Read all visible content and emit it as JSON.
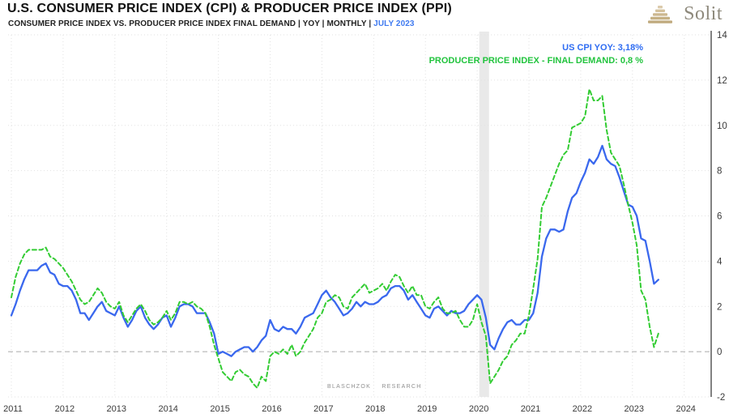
{
  "header": {
    "title": "U.S. CONSUMER PRICE INDEX (CPI) & PRODUCER PRICE INDEX (PPI)",
    "subtitle_prefix": "CONSUMER PRICE INDEX VS. PRODUCER PRICE INDEX FINAL DEMAND | YOY | MONTHLY | ",
    "subtitle_period": "JULY 2023",
    "logo_text": "Solit"
  },
  "legend": {
    "cpi_label": "US CPI YOY: 3,18%",
    "ppi_label": "PRODUCER PRICE INDEX - FINAL DEMAND: 0,8 %"
  },
  "watermark": "BLASCHZOK RESEARCH",
  "colors": {
    "cpi_line": "#3a68ee",
    "ppi_line": "#33cc33",
    "legend_cpi": "#2e6cf2",
    "legend_ppi": "#22c43e",
    "subtitle_period": "#3f7af0",
    "logo_text": "#8e897c",
    "logo_gold_dark": "#c0aa7e",
    "logo_gold_light": "#dbcaab",
    "grid": "#e2e2e2",
    "zero_line": "#ababab",
    "axis_line": "#2f2f2f",
    "recession_band": "#e9e9e9"
  },
  "chart_data": {
    "type": "line",
    "title": "U.S. CONSUMER PRICE INDEX (CPI) & PRODUCER PRICE INDEX (PPI)",
    "subtitle": "CONSUMER PRICE INDEX VS. PRODUCER PRICE INDEX FINAL DEMAND | YOY | MONTHLY | JULY 2023",
    "x_start": 2011.0,
    "x_step": 0.0833333,
    "x_end": 2023.5,
    "xlim": [
      2011,
      2024.55
    ],
    "ylim": [
      -2,
      14
    ],
    "grid": true,
    "legend_position": "top-right",
    "y_ticks": [
      14,
      12,
      10,
      8,
      6,
      4,
      2,
      0,
      -2
    ],
    "x_ticks": [
      "2011",
      "2012",
      "2013",
      "2014",
      "2015",
      "2016",
      "2017",
      "2018",
      "2019",
      "2020",
      "2021",
      "2022",
      "2023",
      "2024"
    ],
    "zero_line": 0,
    "recession_band": {
      "start": 2020.04,
      "end": 2020.23
    },
    "series": [
      {
        "id": "cpi-line",
        "name": "US CPI YOY",
        "last_value_label": "3,18%",
        "color_key": "cpi_line",
        "style": "solid",
        "values": [
          1.6,
          2.1,
          2.7,
          3.2,
          3.6,
          3.6,
          3.6,
          3.8,
          3.9,
          3.5,
          3.4,
          3.0,
          2.9,
          2.9,
          2.7,
          2.3,
          1.7,
          1.7,
          1.4,
          1.7,
          2.0,
          2.2,
          1.8,
          1.7,
          1.6,
          2.0,
          1.5,
          1.1,
          1.4,
          1.8,
          2.0,
          1.5,
          1.2,
          1.0,
          1.2,
          1.5,
          1.6,
          1.1,
          1.5,
          2.0,
          2.1,
          2.1,
          2.0,
          1.7,
          1.7,
          1.7,
          1.3,
          0.8,
          -0.1,
          0.0,
          -0.1,
          -0.2,
          0.0,
          0.1,
          0.2,
          0.2,
          0.0,
          0.2,
          0.5,
          0.7,
          1.4,
          1.0,
          0.9,
          1.1,
          1.0,
          1.0,
          0.8,
          1.1,
          1.5,
          1.6,
          1.7,
          2.1,
          2.5,
          2.7,
          2.4,
          2.2,
          1.9,
          1.6,
          1.7,
          1.9,
          2.2,
          2.0,
          2.2,
          2.1,
          2.1,
          2.2,
          2.4,
          2.5,
          2.8,
          2.9,
          2.9,
          2.7,
          2.3,
          2.5,
          2.2,
          1.9,
          1.6,
          1.5,
          1.9,
          2.0,
          1.8,
          1.6,
          1.8,
          1.7,
          1.7,
          1.8,
          2.1,
          2.3,
          2.5,
          2.3,
          1.5,
          0.3,
          0.1,
          0.6,
          1.0,
          1.3,
          1.4,
          1.2,
          1.2,
          1.4,
          1.4,
          1.7,
          2.6,
          4.2,
          5.0,
          5.4,
          5.4,
          5.3,
          5.4,
          6.2,
          6.8,
          7.0,
          7.5,
          7.9,
          8.5,
          8.3,
          8.6,
          9.1,
          8.5,
          8.3,
          8.2,
          7.7,
          7.1,
          6.5,
          6.4,
          6.0,
          5.0,
          4.9,
          4.0,
          3.0,
          3.18
        ]
      },
      {
        "id": "ppi-line",
        "name": "PRODUCER PRICE INDEX - FINAL DEMAND",
        "last_value_label": "0,8 %",
        "color_key": "ppi_line",
        "style": "dashed",
        "values": [
          2.4,
          3.3,
          3.9,
          4.3,
          4.5,
          4.5,
          4.5,
          4.5,
          4.6,
          4.2,
          4.1,
          3.9,
          3.7,
          3.4,
          3.1,
          2.7,
          2.3,
          2.1,
          2.2,
          2.5,
          2.8,
          2.6,
          2.2,
          2.0,
          1.9,
          2.2,
          1.6,
          1.3,
          1.6,
          1.9,
          2.1,
          1.8,
          1.4,
          1.2,
          1.3,
          1.5,
          1.8,
          1.4,
          1.7,
          2.2,
          2.2,
          2.1,
          2.2,
          2.0,
          1.9,
          1.7,
          1.1,
          0.3,
          -0.3,
          -0.9,
          -1.1,
          -1.3,
          -0.9,
          -0.8,
          -1.0,
          -1.1,
          -1.4,
          -1.6,
          -1.1,
          -1.3,
          -0.2,
          0.0,
          -0.1,
          0.1,
          -0.1,
          0.3,
          -0.2,
          0.0,
          0.4,
          0.7,
          1.0,
          1.5,
          1.7,
          2.2,
          2.3,
          2.5,
          2.4,
          2.0,
          1.9,
          2.4,
          2.6,
          2.8,
          3.0,
          2.6,
          2.7,
          2.8,
          3.0,
          2.7,
          3.1,
          3.4,
          3.3,
          2.9,
          2.6,
          2.9,
          2.5,
          2.5,
          2.0,
          1.9,
          2.2,
          2.4,
          1.9,
          1.7,
          1.7,
          1.8,
          1.4,
          1.1,
          1.1,
          1.4,
          2.1,
          1.3,
          0.7,
          -1.4,
          -1.1,
          -0.8,
          -0.4,
          -0.2,
          0.3,
          0.5,
          0.8,
          0.8,
          1.6,
          2.8,
          4.1,
          6.4,
          6.8,
          7.3,
          7.8,
          8.3,
          8.7,
          8.9,
          9.9,
          10.0,
          10.1,
          10.4,
          11.6,
          11.1,
          11.1,
          11.3,
          9.8,
          8.8,
          8.5,
          8.2,
          7.4,
          6.5,
          5.7,
          4.7,
          2.7,
          2.3,
          1.1,
          0.2,
          0.8
        ]
      }
    ]
  }
}
